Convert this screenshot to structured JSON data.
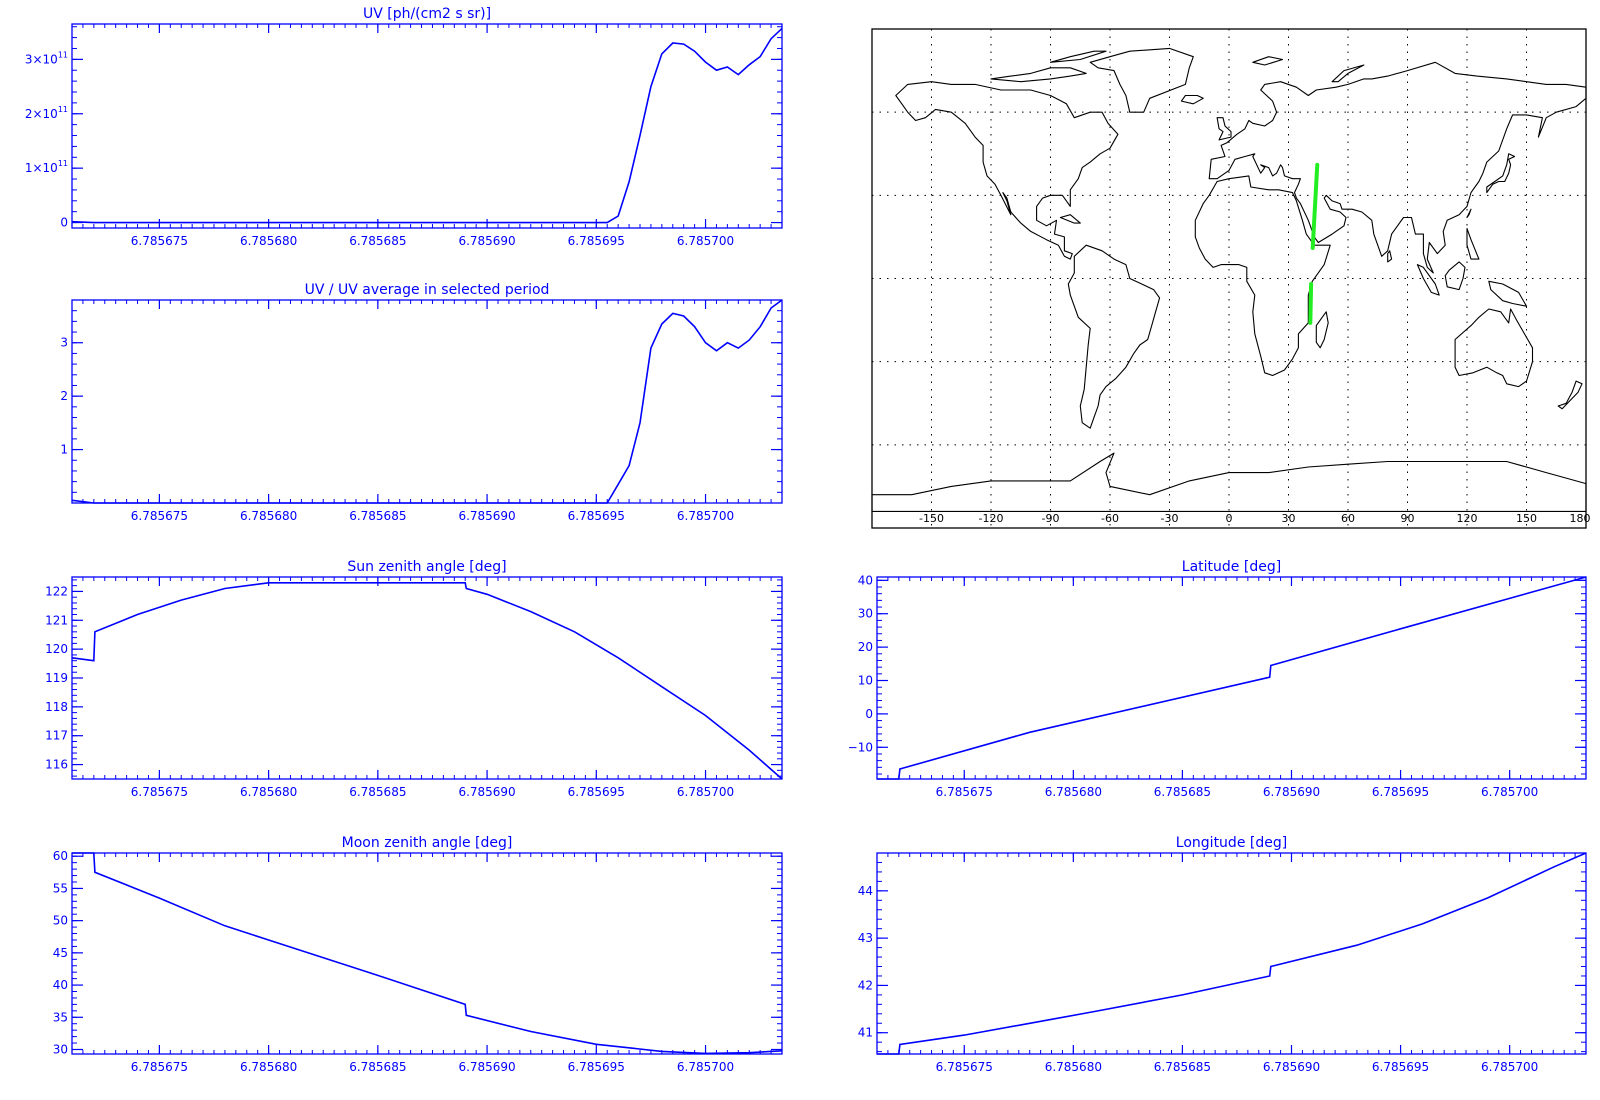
{
  "colors": {
    "plot": "#0000ff",
    "map": "#000000",
    "track": "#22ee22",
    "grid": "#000000"
  },
  "chart_data": [
    {
      "id": "uv",
      "type": "line",
      "title": "UV [ph/(cm2 s sr)]",
      "xlabel": "",
      "ylabel": "",
      "xlim": [
        6.785671,
        6.7857035
      ],
      "ylim": [
        -10000000000,
        365000000000
      ],
      "x_ticks": [
        "6.785675",
        "6.785680",
        "6.785685",
        "6.785690",
        "6.785695",
        "6.785700"
      ],
      "x_tick_values": [
        6.785675,
        6.78568,
        6.785685,
        6.78569,
        6.785695,
        6.7857
      ],
      "y_ticks": [
        {
          "value": 0,
          "base": "0",
          "exp": ""
        },
        {
          "value": 100000000000,
          "base": "1×10",
          "exp": "11"
        },
        {
          "value": 200000000000,
          "base": "2×10",
          "exp": "11"
        },
        {
          "value": 300000000000,
          "base": "3×10",
          "exp": "11"
        }
      ],
      "series": [
        {
          "x": [
            6.785671,
            6.785672,
            6.785673,
            6.78568,
            6.78569,
            6.7856955,
            6.785696,
            6.7856965,
            6.785697,
            6.7856975,
            6.785698,
            6.7856985,
            6.785699,
            6.7856995,
            6.7857,
            6.7857005,
            6.785701,
            6.7857015,
            6.785702,
            6.7857025,
            6.785703,
            6.7857035
          ],
          "y": [
            1500000000,
            0,
            0,
            0,
            0,
            0,
            12000000000,
            75000000000,
            160000000000,
            250000000000,
            310000000000,
            330000000000,
            328000000000,
            315000000000,
            295000000000,
            280000000000,
            286000000000,
            272000000000,
            290000000000,
            305000000000,
            338000000000,
            357000000000
          ]
        }
      ]
    },
    {
      "id": "uvratio",
      "type": "line",
      "title": "UV / UV average in selected period",
      "xlabel": "",
      "ylabel": "",
      "xlim": [
        6.785671,
        6.7857035
      ],
      "ylim": [
        0,
        3.8
      ],
      "x_ticks": [
        "6.785675",
        "6.785680",
        "6.785685",
        "6.785690",
        "6.785695",
        "6.785700"
      ],
      "x_tick_values": [
        6.785675,
        6.78568,
        6.785685,
        6.78569,
        6.785695,
        6.7857
      ],
      "y_ticks": [
        {
          "value": 1,
          "base": "1",
          "exp": ""
        },
        {
          "value": 2,
          "base": "2",
          "exp": ""
        },
        {
          "value": 3,
          "base": "3",
          "exp": ""
        }
      ],
      "series": [
        {
          "x": [
            6.785671,
            6.785672,
            6.785673,
            6.78568,
            6.78569,
            6.7856955,
            6.785696,
            6.7856965,
            6.785697,
            6.7856975,
            6.785698,
            6.7856985,
            6.785699,
            6.7856995,
            6.7857,
            6.7857005,
            6.785701,
            6.7857015,
            6.785702,
            6.7857025,
            6.785703,
            6.7857035
          ],
          "y": [
            0.05,
            0.0,
            0.0,
            0.0,
            0.0,
            0.0,
            0.35,
            0.7,
            1.5,
            2.9,
            3.35,
            3.55,
            3.5,
            3.3,
            3.0,
            2.85,
            3.0,
            2.9,
            3.05,
            3.3,
            3.65,
            3.8
          ]
        }
      ]
    },
    {
      "id": "sza",
      "type": "line",
      "title": "Sun zenith angle [deg]",
      "xlabel": "",
      "ylabel": "",
      "xlim": [
        6.785671,
        6.7857035
      ],
      "ylim": [
        115.5,
        122.5
      ],
      "x_ticks": [
        "6.785675",
        "6.785680",
        "6.785685",
        "6.785690",
        "6.785695",
        "6.785700"
      ],
      "x_tick_values": [
        6.785675,
        6.78568,
        6.785685,
        6.78569,
        6.785695,
        6.7857
      ],
      "y_ticks": [
        {
          "value": 116,
          "base": "116",
          "exp": ""
        },
        {
          "value": 117,
          "base": "117",
          "exp": ""
        },
        {
          "value": 118,
          "base": "118",
          "exp": ""
        },
        {
          "value": 119,
          "base": "119",
          "exp": ""
        },
        {
          "value": 120,
          "base": "120",
          "exp": ""
        },
        {
          "value": 121,
          "base": "121",
          "exp": ""
        },
        {
          "value": 122,
          "base": "122",
          "exp": ""
        }
      ],
      "series": [
        {
          "x": [
            6.785671,
            6.785672,
            6.78567205,
            6.785674,
            6.785676,
            6.785678,
            6.78568,
            6.785689,
            6.78568905,
            6.78569,
            6.785692,
            6.785694,
            6.785696,
            6.785698,
            6.7857,
            6.785702,
            6.7857035
          ],
          "y": [
            119.7,
            119.6,
            120.6,
            121.2,
            121.7,
            122.1,
            122.3,
            122.3,
            122.1,
            121.9,
            121.3,
            120.6,
            119.7,
            118.7,
            117.7,
            116.5,
            115.5
          ]
        }
      ]
    },
    {
      "id": "moon",
      "type": "line",
      "title": "Moon zenith angle [deg]",
      "xlabel": "",
      "ylabel": "",
      "xlim": [
        6.785671,
        6.7857035
      ],
      "ylim": [
        29.3,
        60.5
      ],
      "x_ticks": [
        "6.785675",
        "6.785680",
        "6.785685",
        "6.785690",
        "6.785695",
        "6.785700"
      ],
      "x_tick_values": [
        6.785675,
        6.78568,
        6.785685,
        6.78569,
        6.785695,
        6.7857
      ],
      "y_ticks": [
        {
          "value": 30,
          "base": "30",
          "exp": ""
        },
        {
          "value": 35,
          "base": "35",
          "exp": ""
        },
        {
          "value": 40,
          "base": "40",
          "exp": ""
        },
        {
          "value": 45,
          "base": "45",
          "exp": ""
        },
        {
          "value": 50,
          "base": "50",
          "exp": ""
        },
        {
          "value": 55,
          "base": "55",
          "exp": ""
        },
        {
          "value": 60,
          "base": "60",
          "exp": ""
        }
      ],
      "series": [
        {
          "x": [
            6.785671,
            6.785672,
            6.78567205,
            6.785675,
            6.785678,
            6.78568,
            6.785685,
            6.785689,
            6.78568905,
            6.785692,
            6.785695,
            6.785698,
            6.7857,
            6.785702,
            6.7857035
          ],
          "y": [
            60.5,
            60.5,
            57.5,
            53.5,
            49.2,
            47.0,
            41.5,
            37.0,
            35.3,
            32.8,
            30.8,
            29.7,
            29.4,
            29.5,
            29.8
          ]
        }
      ]
    },
    {
      "id": "lat",
      "type": "line",
      "title": "Latitude [deg]",
      "xlabel": "",
      "ylabel": "",
      "xlim": [
        6.785671,
        6.7857035
      ],
      "ylim": [
        -19.5,
        41
      ],
      "x_ticks": [
        "6.785675",
        "6.785680",
        "6.785685",
        "6.785690",
        "6.785695",
        "6.785700"
      ],
      "x_tick_values": [
        6.785675,
        6.78568,
        6.785685,
        6.78569,
        6.785695,
        6.7857
      ],
      "y_ticks": [
        {
          "value": -10,
          "base": "−10",
          "exp": ""
        },
        {
          "value": 0,
          "base": "0",
          "exp": ""
        },
        {
          "value": 10,
          "base": "10",
          "exp": ""
        },
        {
          "value": 20,
          "base": "20",
          "exp": ""
        },
        {
          "value": 30,
          "base": "30",
          "exp": ""
        },
        {
          "value": 40,
          "base": "40",
          "exp": ""
        }
      ],
      "series": [
        {
          "x": [
            6.785671,
            6.785672,
            6.78567205,
            6.785678,
            6.785689,
            6.78568905,
            6.785695,
            6.7857035
          ],
          "y": [
            -19.5,
            -19.5,
            -16.5,
            -5.5,
            11.0,
            14.5,
            25.5,
            41.0
          ]
        }
      ]
    },
    {
      "id": "lon",
      "type": "line",
      "title": "Longitude [deg]",
      "xlabel": "",
      "ylabel": "",
      "xlim": [
        6.785671,
        6.7857035
      ],
      "ylim": [
        40.55,
        44.8
      ],
      "x_ticks": [
        "6.785675",
        "6.785680",
        "6.785685",
        "6.785690",
        "6.785695",
        "6.785700"
      ],
      "x_tick_values": [
        6.785675,
        6.78568,
        6.785685,
        6.78569,
        6.785695,
        6.7857
      ],
      "y_ticks": [
        {
          "value": 41,
          "base": "41",
          "exp": ""
        },
        {
          "value": 42,
          "base": "42",
          "exp": ""
        },
        {
          "value": 43,
          "base": "43",
          "exp": ""
        },
        {
          "value": 44,
          "base": "44",
          "exp": ""
        }
      ],
      "series": [
        {
          "x": [
            6.785671,
            6.785672,
            6.78567205,
            6.785675,
            6.785678,
            6.785681,
            6.785685,
            6.785689,
            6.78568905,
            6.785693,
            6.785696,
            6.785699,
            6.785702,
            6.7857035
          ],
          "y": [
            40.55,
            40.55,
            40.75,
            40.95,
            41.2,
            41.45,
            41.8,
            42.2,
            42.4,
            42.85,
            43.3,
            43.85,
            44.5,
            44.8
          ]
        }
      ]
    }
  ],
  "map": {
    "x_ticks": [
      "-150",
      "-120",
      "-90",
      "-60",
      "-30",
      "0",
      "30",
      "60",
      "90",
      "120",
      "150",
      "180"
    ],
    "x_tick_values": [
      -150,
      -120,
      -90,
      -60,
      -30,
      0,
      30,
      60,
      90,
      120,
      150,
      180
    ],
    "lon_range": [
      -180,
      180
    ],
    "lat_range": [
      -90,
      90
    ],
    "grid_lons": [
      -150,
      -120,
      -90,
      -60,
      -30,
      0,
      30,
      60,
      90,
      120,
      150
    ],
    "grid_lats": [
      -60,
      -30,
      0,
      30,
      60
    ],
    "track_segments": [
      [
        [
          41.0,
          -16.0
        ],
        [
          41.4,
          -2.0
        ]
      ],
      [
        [
          42.2,
          11.0
        ],
        [
          44.5,
          41.0
        ]
      ]
    ]
  }
}
